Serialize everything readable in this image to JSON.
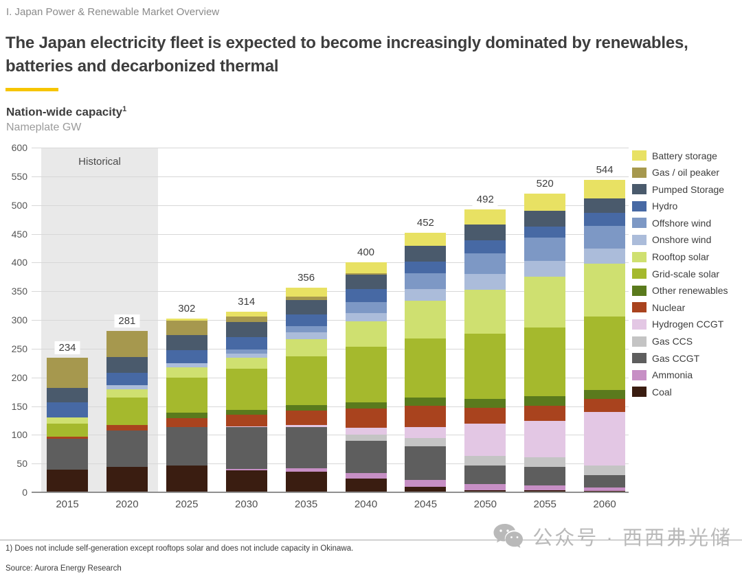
{
  "page": {
    "breadcrumb": "I. Japan Power & Renewable Market Overview",
    "title": "The Japan electricity fleet is expected to become increasingly dominated by renewables, batteries and decarbonized thermal",
    "accent_color": "#f6c500"
  },
  "chart_header": {
    "title": "Nation-wide capacity",
    "title_superscript": "1",
    "subtitle": "Nameplate GW"
  },
  "chart_data": {
    "type": "bar",
    "stacked": true,
    "title": "Nation-wide capacity (Nameplate GW)",
    "ylabel": "Nameplate GW",
    "ylim": [
      0,
      600
    ],
    "ytick_step": 50,
    "grid": true,
    "legend_position": "right",
    "annotation": "Historical",
    "historical_categories": [
      "2015",
      "2020"
    ],
    "categories": [
      "2015",
      "2020",
      "2025",
      "2030",
      "2035",
      "2040",
      "2045",
      "2050",
      "2055",
      "2060"
    ],
    "totals": [
      234,
      281,
      302,
      314,
      356,
      400,
      452,
      492,
      520,
      544
    ],
    "series": [
      {
        "name": "Coal",
        "color": "#3a1d11",
        "values": [
          40,
          44,
          47,
          38,
          36,
          24,
          10,
          4,
          4,
          2
        ]
      },
      {
        "name": "Ammonia",
        "color": "#c78fc5",
        "values": [
          0,
          0,
          0,
          3,
          6,
          10,
          12,
          10,
          8,
          6
        ]
      },
      {
        "name": "Gas CCGT",
        "color": "#5e5e5e",
        "values": [
          53,
          64,
          66,
          72,
          71,
          56,
          58,
          33,
          32,
          22
        ]
      },
      {
        "name": "Gas CCS",
        "color": "#c4c4c4",
        "values": [
          0,
          0,
          0,
          0,
          0,
          10,
          14,
          16,
          17,
          17
        ]
      },
      {
        "name": "Hydrogen CCGT",
        "color": "#e3c7e4",
        "values": [
          0,
          0,
          0,
          2,
          4,
          12,
          20,
          56,
          63,
          93
        ]
      },
      {
        "name": "Nuclear",
        "color": "#a9431e",
        "values": [
          4,
          9,
          16,
          20,
          25,
          34,
          37,
          28,
          27,
          23
        ]
      },
      {
        "name": "Other renewables",
        "color": "#5a7a1d",
        "values": [
          0,
          0,
          10,
          9,
          10,
          11,
          14,
          16,
          16,
          15
        ]
      },
      {
        "name": "Grid-scale solar",
        "color": "#a5b92d",
        "values": [
          22,
          48,
          61,
          71,
          85,
          96,
          103,
          113,
          120,
          128
        ]
      },
      {
        "name": "Rooftop solar",
        "color": "#cfe070",
        "values": [
          11,
          14,
          17,
          19,
          29,
          45,
          65,
          77,
          88,
          92
        ]
      },
      {
        "name": "Onshore wind",
        "color": "#abbcda",
        "values": [
          0,
          7,
          8,
          8,
          12,
          14,
          21,
          27,
          28,
          26
        ]
      },
      {
        "name": "Offshore wind",
        "color": "#7d98c5",
        "values": [
          0,
          0,
          0,
          7,
          11,
          19,
          27,
          36,
          40,
          40
        ]
      },
      {
        "name": "Hydro",
        "color": "#4769a4",
        "values": [
          26,
          22,
          22,
          21,
          21,
          23,
          21,
          23,
          20,
          23
        ]
      },
      {
        "name": "Pumped Storage",
        "color": "#4a5a6c",
        "values": [
          26,
          27,
          27,
          27,
          25,
          25,
          27,
          27,
          27,
          24
        ]
      },
      {
        "name": "Gas / oil peaker",
        "color": "#a6984e",
        "values": [
          52,
          46,
          25,
          9,
          6,
          2,
          0,
          0,
          0,
          0
        ]
      },
      {
        "name": "Battery storage",
        "color": "#e8e163",
        "values": [
          0,
          0,
          3,
          8,
          15,
          19,
          23,
          26,
          30,
          33
        ]
      }
    ]
  },
  "footer": {
    "footnote": "1) Does not include self-generation except rooftops solar and does not include capacity in Okinawa.",
    "source": "Source: Aurora Energy Research"
  },
  "watermark": {
    "icon": "wechat-icon",
    "text": "公众号 · 西西弗光储"
  }
}
